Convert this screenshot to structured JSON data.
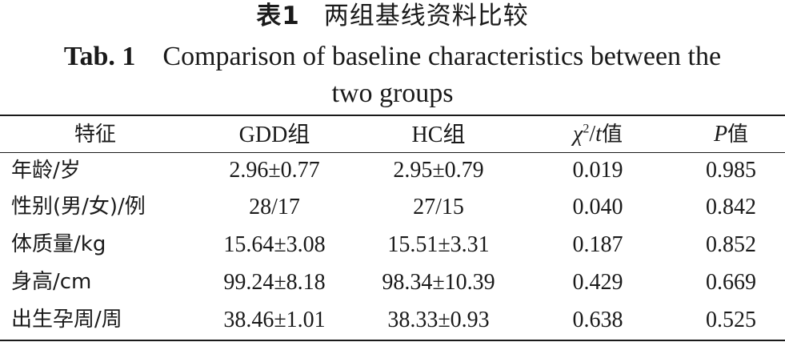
{
  "caption": {
    "cn_label": "表1",
    "cn_title": "两组基线资料比较",
    "en_label": "Tab. 1",
    "en_title_line1": "Comparison of baseline characteristics between the",
    "en_title_line2": "two groups"
  },
  "table": {
    "headers": {
      "item": "特征",
      "gdd": "GDD组",
      "hc": "HC组",
      "stat_symbol": "χ",
      "stat_sup": "2",
      "stat_sep": "/",
      "stat_t": "t",
      "stat_suffix": "值",
      "p_symbol": "P",
      "p_suffix": "值"
    },
    "rows": [
      {
        "item": "年龄/岁",
        "gdd": "2.96±0.77",
        "hc": "2.95±0.79",
        "stat": "0.019",
        "p": "0.985"
      },
      {
        "item": "性别(男/女)/例",
        "gdd": "28/17",
        "hc": "27/15",
        "stat": "0.040",
        "p": "0.842"
      },
      {
        "item": "体质量/kg",
        "gdd": "15.64±3.08",
        "hc": "15.51±3.31",
        "stat": "0.187",
        "p": "0.852"
      },
      {
        "item": "身高/cm",
        "gdd": "99.24±8.18",
        "hc": "98.34±10.39",
        "stat": "0.429",
        "p": "0.669"
      },
      {
        "item": "出生孕周/周",
        "gdd": "38.46±1.01",
        "hc": "38.33±0.93",
        "stat": "0.638",
        "p": "0.525"
      }
    ]
  }
}
